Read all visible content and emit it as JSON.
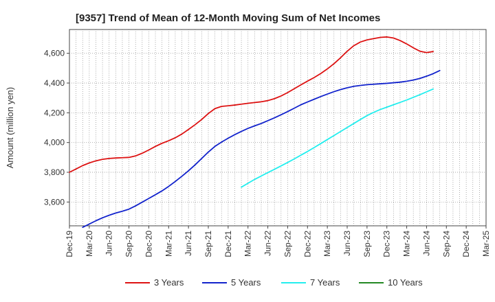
{
  "chart_data": {
    "type": "line",
    "title": "[9357]  Trend of Mean of 12-Month Moving Sum of Net Incomes",
    "ylabel": "Amount (million yen)",
    "xlabel": "",
    "ylim": [
      3440,
      4760
    ],
    "yticks": [
      3600,
      3800,
      4000,
      4200,
      4400,
      4600
    ],
    "ytick_labels": [
      "3,600",
      "3,800",
      "4,000",
      "4,200",
      "4,400",
      "4,600"
    ],
    "x_categories": [
      "Dec-19",
      "Mar-20",
      "Jun-20",
      "Sep-20",
      "Dec-20",
      "Mar-21",
      "Jun-21",
      "Sep-21",
      "Dec-21",
      "Mar-22",
      "Jun-22",
      "Sep-22",
      "Dec-22",
      "Mar-23",
      "Jun-23",
      "Sep-23",
      "Dec-23",
      "Mar-24",
      "Jun-24",
      "Sep-24",
      "Dec-24",
      "Mar-25"
    ],
    "grid": true,
    "legend_position": "bottom",
    "series": [
      {
        "name": "3 Years",
        "color": "#dd1111",
        "start_index": 0,
        "values": [
          3800,
          3822,
          3845,
          3863,
          3877,
          3887,
          3893,
          3896,
          3898,
          3900,
          3910,
          3928,
          3950,
          3974,
          3995,
          4012,
          4032,
          4057,
          4088,
          4120,
          4155,
          4195,
          4228,
          4243,
          4247,
          4252,
          4258,
          4264,
          4269,
          4274,
          4282,
          4295,
          4313,
          4336,
          4362,
          4388,
          4413,
          4437,
          4464,
          4495,
          4530,
          4570,
          4614,
          4651,
          4676,
          4690,
          4699,
          4707,
          4710,
          4703,
          4686,
          4663,
          4637,
          4614,
          4605,
          4612
        ]
      },
      {
        "name": "5 Years",
        "color": "#1122cc",
        "start_index": 2,
        "values": [
          3430,
          3452,
          3474,
          3494,
          3511,
          3526,
          3538,
          3552,
          3574,
          3599,
          3624,
          3649,
          3675,
          3705,
          3738,
          3773,
          3810,
          3850,
          3893,
          3936,
          3974,
          4003,
          4029,
          4053,
          4075,
          4095,
          4112,
          4128,
          4147,
          4166,
          4187,
          4208,
          4231,
          4254,
          4273,
          4291,
          4309,
          4326,
          4342,
          4356,
          4368,
          4378,
          4384,
          4389,
          4392,
          4395,
          4398,
          4402,
          4406,
          4412,
          4420,
          4431,
          4446,
          4463,
          4484
        ]
      },
      {
        "name": "7 Years",
        "color": "#22eeee",
        "start_index": 26,
        "values": [
          3700,
          3726,
          3752,
          3775,
          3798,
          3820,
          3843,
          3866,
          3890,
          3915,
          3940,
          3966,
          3993,
          4020,
          4047,
          4074,
          4101,
          4128,
          4155,
          4181,
          4203,
          4222,
          4238,
          4254,
          4270,
          4286,
          4304,
          4322,
          4341,
          4360
        ]
      },
      {
        "name": "10 Years",
        "color": "#228822",
        "start_index": 0,
        "values": []
      }
    ]
  }
}
